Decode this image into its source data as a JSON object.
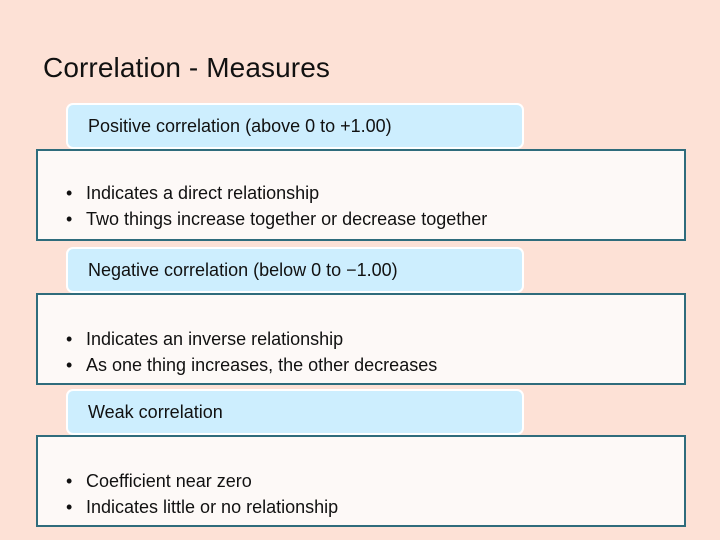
{
  "slide": {
    "title": "Correlation - Measures",
    "sections": [
      {
        "heading": "Positive correlation (above 0 to +1.00)",
        "bullets": [
          "Indicates a direct relationship",
          "Two things increase together or decrease together"
        ]
      },
      {
        "heading": "Negative correlation (below 0 to −1.00)",
        "bullets": [
          "Indicates an inverse relationship",
          "As one thing increases, the other decreases"
        ]
      },
      {
        "heading": "Weak correlation",
        "bullets": [
          "Coefficient near zero",
          "Indicates little or no relationship"
        ]
      }
    ],
    "bullet_symbol": "•"
  }
}
